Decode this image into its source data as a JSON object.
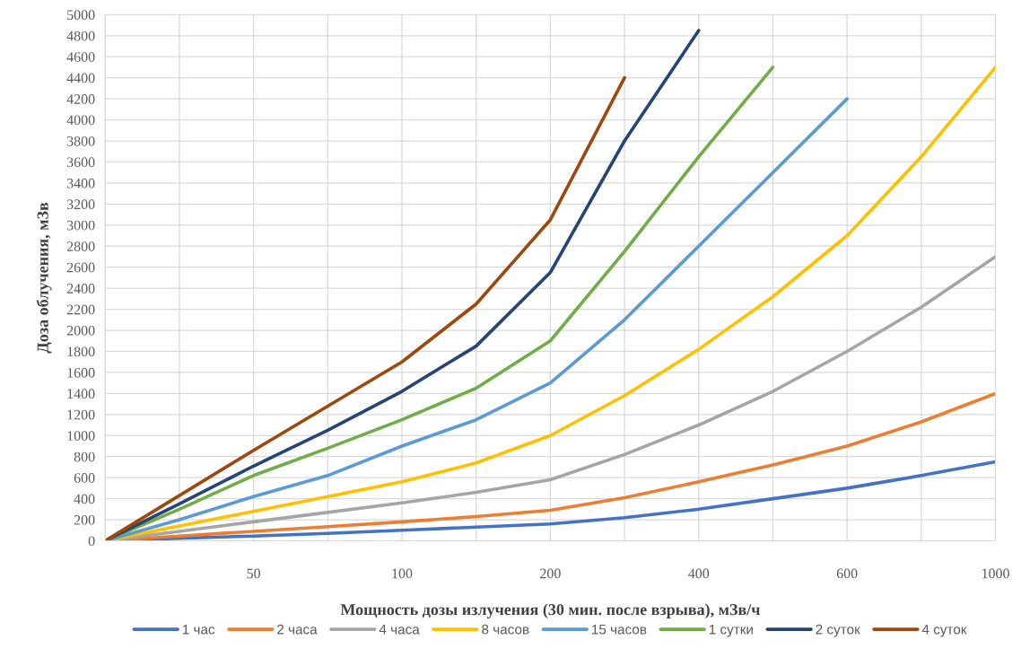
{
  "chart_data": {
    "type": "line",
    "xlabel": "Мощность дозы излучения (30 мин. после взрыва), мЗв/ч",
    "ylabel": "Доза облучения, мЗв",
    "categories": [
      null,
      null,
      "50",
      null,
      "100",
      null,
      "200",
      null,
      "400",
      null,
      "600",
      null,
      "1000"
    ],
    "ylim": [
      0,
      5000
    ],
    "yticks": [
      0,
      200,
      400,
      600,
      800,
      1000,
      1200,
      1400,
      1600,
      1800,
      2000,
      2200,
      2400,
      2600,
      2800,
      3000,
      3200,
      3400,
      3600,
      3800,
      4000,
      4200,
      4400,
      4600,
      4800,
      5000
    ],
    "grid": true,
    "legend": "bottom",
    "marker": "none",
    "line_style": "solid",
    "series": [
      {
        "name": "1 час",
        "color": "#4472c4",
        "values": [
          0,
          25,
          45,
          70,
          100,
          130,
          160,
          220,
          300,
          400,
          500,
          620,
          750
        ]
      },
      {
        "name": "2 часа",
        "color": "#ed7d31",
        "values": [
          0,
          45,
          90,
          135,
          180,
          230,
          290,
          410,
          560,
          720,
          900,
          1130,
          1400
        ]
      },
      {
        "name": "4 часа",
        "color": "#a5a5a5",
        "values": [
          0,
          90,
          180,
          270,
          360,
          460,
          580,
          820,
          1100,
          1420,
          1800,
          2220,
          2700
        ]
      },
      {
        "name": "8 часов",
        "color": "#ffc000",
        "values": [
          0,
          140,
          280,
          420,
          560,
          740,
          1000,
          1380,
          1820,
          2320,
          2900,
          3650,
          4500
        ]
      },
      {
        "name": "15 часов",
        "color": "#5b9bd5",
        "values": [
          0,
          200,
          420,
          620,
          900,
          1150,
          1500,
          2100,
          2800,
          3500,
          4200,
          null,
          null
        ]
      },
      {
        "name": "1 сутки",
        "color": "#70ad47",
        "values": [
          0,
          300,
          620,
          880,
          1150,
          1450,
          1900,
          2750,
          3650,
          4500,
          null,
          null,
          null
        ]
      },
      {
        "name": "2 суток",
        "color": "#264478",
        "values": [
          0,
          350,
          710,
          1050,
          1420,
          1850,
          2550,
          3800,
          4850,
          null,
          null,
          null,
          null
        ]
      },
      {
        "name": "4 суток",
        "color": "#9e480e",
        "values": [
          0,
          430,
          860,
          1280,
          1700,
          2250,
          3050,
          4400,
          null,
          null,
          null,
          null,
          null
        ]
      }
    ]
  }
}
